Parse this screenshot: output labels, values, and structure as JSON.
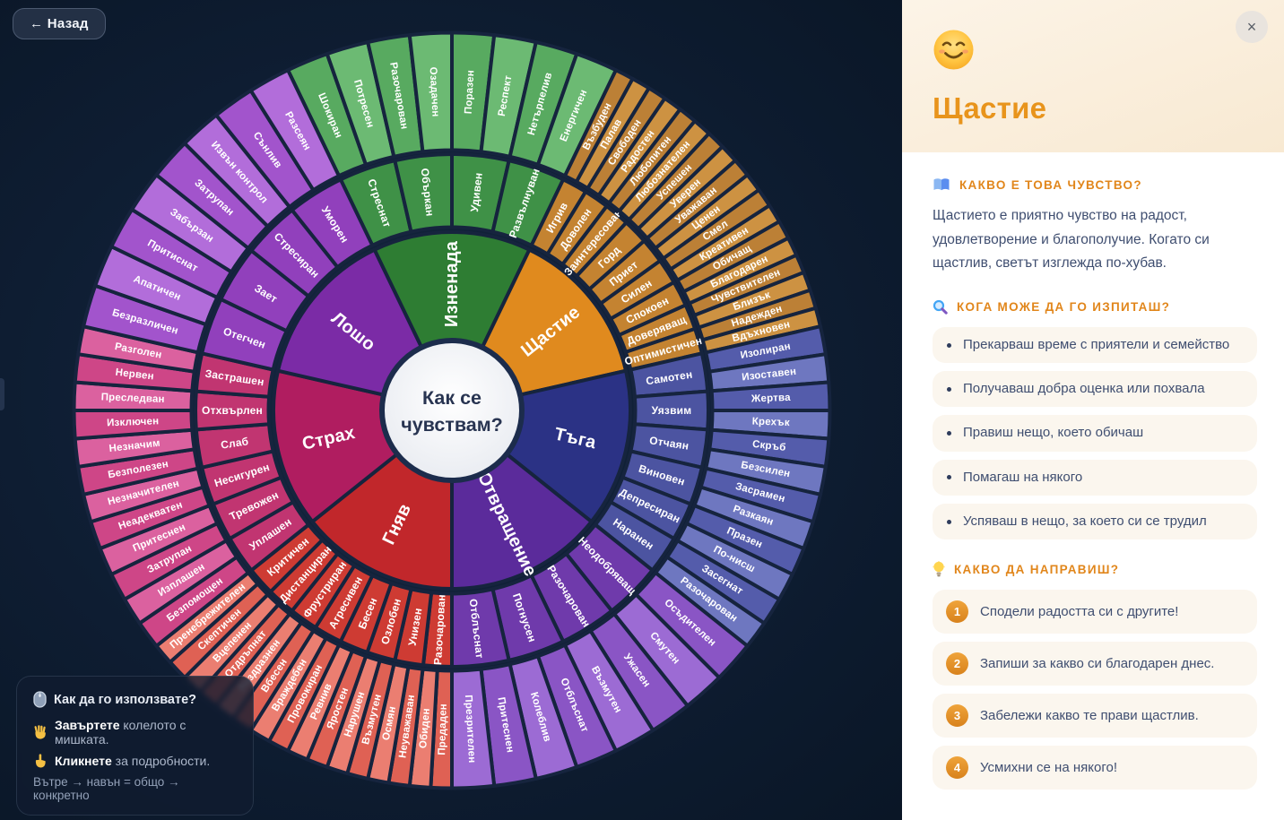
{
  "theme": {
    "background": "#0D1B2F",
    "accent_orange": "#E8941C",
    "panel_text": "#3F4E70",
    "card_bg": "#FBF6EE",
    "separator": "#16243E"
  },
  "back_button": {
    "label": "← Назад"
  },
  "center": {
    "line1": "Как се",
    "line2": "чувствам?"
  },
  "wheel": {
    "sections": [
      {
        "name": "Изненада",
        "colors": {
          "core": "#2E7D33",
          "mid": "#3F9147",
          "outerA": "#58AA60",
          "outerB": "#6CBA73"
        },
        "children": [
          {
            "name": "Стреснат",
            "children": [
              "Шокиран",
              "Потресен"
            ]
          },
          {
            "name": "Объркан",
            "children": [
              "Разочарован",
              "Озадачен"
            ]
          },
          {
            "name": "Удивен",
            "children": [
              "Поразен",
              "Респект"
            ]
          },
          {
            "name": "Развълнуван",
            "children": [
              "Нетърпелив",
              "Енергичен"
            ]
          }
        ]
      },
      {
        "name": "Щастие",
        "colors": {
          "core": "#E08A1E",
          "mid": "#C48331",
          "outerA": "#BC8036",
          "outerB": "#CD9242"
        },
        "children": [
          {
            "name": "Игрив",
            "children": [
              "Възбуден",
              "Палав"
            ]
          },
          {
            "name": "Доволен",
            "children": [
              "Свободен",
              "Радостен"
            ]
          },
          {
            "name": "Заинтересован",
            "children": [
              "Любопитен",
              "Любознателен"
            ]
          },
          {
            "name": "Горд",
            "children": [
              "Успешен",
              "Уверен"
            ]
          },
          {
            "name": "Приет",
            "children": [
              "Уважаван",
              "Ценен"
            ]
          },
          {
            "name": "Силен",
            "children": [
              "Смел",
              "Креативен"
            ]
          },
          {
            "name": "Спокоен",
            "children": [
              "Обичащ",
              "Благодарен"
            ]
          },
          {
            "name": "Доверяващ",
            "children": [
              "Чувствителен",
              "Близък"
            ]
          },
          {
            "name": "Оптимистичен",
            "children": [
              "Надежден",
              "Вдъхновен"
            ]
          }
        ]
      },
      {
        "name": "Тъга",
        "colors": {
          "core": "#2B3285",
          "mid": "#4C54A1",
          "outerA": "#545CAB",
          "outerB": "#6E77C0"
        },
        "children": [
          {
            "name": "Самотен",
            "children": [
              "Изолиран",
              "Изоставен"
            ]
          },
          {
            "name": "Уязвим",
            "children": [
              "Жертва",
              "Крехък"
            ]
          },
          {
            "name": "Отчаян",
            "children": [
              "Скръб",
              "Безсилен"
            ]
          },
          {
            "name": "Виновен",
            "children": [
              "Засрамен",
              "Разкаян"
            ]
          },
          {
            "name": "Депресиран",
            "children": [
              "Празен",
              "По-нисш"
            ]
          },
          {
            "name": "Наранен",
            "children": [
              "Засегнат",
              "Разочарован"
            ]
          }
        ]
      },
      {
        "name": "Отвращение",
        "colors": {
          "core": "#5B2B9B",
          "mid": "#6F3AAB",
          "outerA": "#8A55C5",
          "outerB": "#9C6BD4"
        },
        "children": [
          {
            "name": "Неодобряващ",
            "children": [
              "Осъдителен",
              "Смутен"
            ]
          },
          {
            "name": "Разочарован",
            "children": [
              "Ужасен",
              "Възмутен"
            ]
          },
          {
            "name": "Погнусен",
            "children": [
              "Отблъснат",
              "Колеблив"
            ]
          },
          {
            "name": "Отблъснат",
            "children": [
              "Притеснен",
              "Презрителен"
            ]
          }
        ]
      },
      {
        "name": "Гняв",
        "colors": {
          "core": "#C1272B",
          "mid": "#CE3B33",
          "outerA": "#DF6154",
          "outerB": "#EB7E71"
        },
        "children": [
          {
            "name": "Разочарован",
            "children": [
              "Предаден",
              "Обиден"
            ]
          },
          {
            "name": "Унизен",
            "children": [
              "Неуважаван",
              "Осмян"
            ]
          },
          {
            "name": "Озлобен",
            "children": [
              "Възмутен",
              "Нарушен"
            ]
          },
          {
            "name": "Бесен",
            "children": [
              "Яростен",
              "Ревнив"
            ]
          },
          {
            "name": "Агресивен",
            "children": [
              "Провокиран",
              "Враждебен"
            ]
          },
          {
            "name": "Фрустриран",
            "children": [
              "Вбесен",
              "Раздразнен"
            ]
          },
          {
            "name": "Дистанциран",
            "children": [
              "Отдръпнат",
              "Вцепенен"
            ]
          },
          {
            "name": "Критичен",
            "children": [
              "Скептичен",
              "Пренебрежителен"
            ]
          }
        ]
      },
      {
        "name": "Страх",
        "colors": {
          "core": "#B01D60",
          "mid": "#C13571",
          "outerA": "#CE4687",
          "outerB": "#DB619F"
        },
        "children": [
          {
            "name": "Уплашен",
            "children": [
              "Безпомощен",
              "Изплашен"
            ]
          },
          {
            "name": "Тревожен",
            "children": [
              "Затрупан",
              "Притеснен"
            ]
          },
          {
            "name": "Несигурен",
            "children": [
              "Неадекватен",
              "Незначителен"
            ]
          },
          {
            "name": "Слаб",
            "children": [
              "Безполезен",
              "Незначим"
            ]
          },
          {
            "name": "Отхвърлен",
            "children": [
              "Изключен",
              "Преследван"
            ]
          },
          {
            "name": "Застрашен",
            "children": [
              "Нервен",
              "Разголен"
            ]
          }
        ]
      },
      {
        "name": "Лошо",
        "colors": {
          "core": "#7B2BA6",
          "mid": "#9140BC",
          "outerA": "#A254CC",
          "outerB": "#B26DDA"
        },
        "children": [
          {
            "name": "Отегчен",
            "children": [
              "Безразличен",
              "Апатичен"
            ]
          },
          {
            "name": "Зает",
            "children": [
              "Притиснат",
              "Забързан"
            ]
          },
          {
            "name": "Стресиран",
            "children": [
              "Затрупан",
              "Извън контрол"
            ]
          },
          {
            "name": "Уморен",
            "children": [
              "Сънлив",
              "Разсеян"
            ]
          }
        ]
      }
    ]
  },
  "help_box": {
    "title": "Как да го използвате?",
    "lines": [
      {
        "bold": "Завъртете",
        "rest": " колелото с мишката."
      },
      {
        "bold": "Кликнете",
        "rest": " за подробности."
      }
    ],
    "note": "Вътре → навън = общо → конкретно"
  },
  "panel": {
    "title": "Щастие",
    "close_glyph": "×",
    "about": {
      "heading": "КАКВО Е ТОВА ЧУВСТВО?",
      "text": "Щастието е приятно чувство на радост, удовлетворение и благополучие. Когато си щастлив, светът изглежда по-хубав."
    },
    "when": {
      "heading": "КОГА МОЖЕ ДА ГО ИЗПИТАШ?",
      "items": [
        "Прекарваш време с приятели и семейство",
        "Получаваш добра оценка или похвала",
        "Правиш нещо, което обичаш",
        "Помагаш на някого",
        "Успяваш в нещо, за което си се трудил"
      ]
    },
    "actions": {
      "heading": "КАКВО ДА НАПРАВИШ?",
      "steps": [
        "Сподели радостта си с другите!",
        "Запиши за какво си благодарен днес.",
        "Забележи какво те прави щастлив.",
        "Усмихни се на някого!"
      ]
    }
  }
}
